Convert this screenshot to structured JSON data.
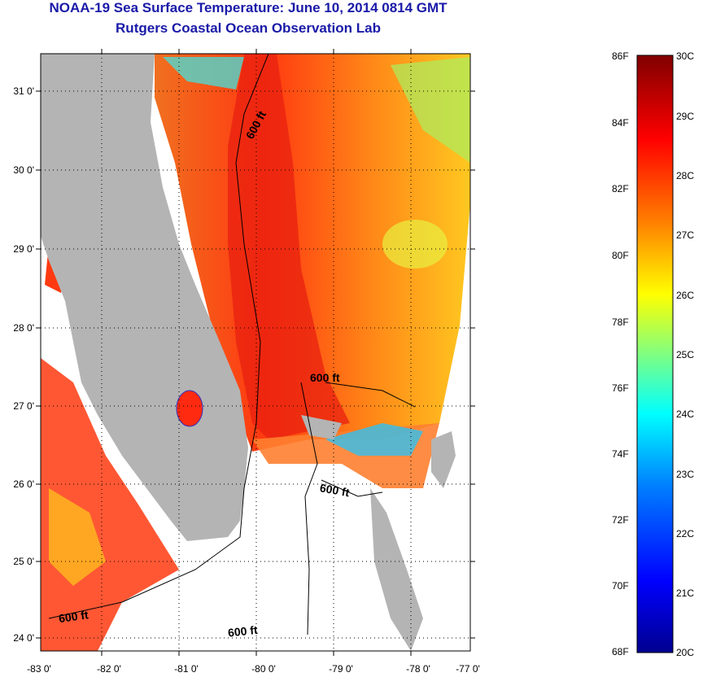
{
  "header": {
    "title": "NOAA-19 Sea Surface Temperature:  June 10, 2014 0814 GMT",
    "subtitle": "Rutgers Coastal Ocean Observation Lab"
  },
  "map": {
    "lon_ticks": [
      "-83 0'",
      "-82 0'",
      "-81 0'",
      "-80 0'",
      "-79 0'",
      "-78 0'",
      "-77 0'"
    ],
    "lat_ticks": [
      "31 0'",
      "30 0'",
      "29 0'",
      "28 0'",
      "27 0'",
      "26 0'",
      "25 0'",
      "24 0'"
    ],
    "isobath_label": "600 ft",
    "land_color": "#b4b4b4",
    "no_data_color": "#ffffff"
  },
  "colorbar": {
    "f_labels": [
      "86F",
      "84F",
      "82F",
      "80F",
      "78F",
      "76F",
      "74F",
      "72F",
      "70F",
      "68F"
    ],
    "c_labels": [
      "30C",
      "29C",
      "28C",
      "27C",
      "26C",
      "25C",
      "24C",
      "23C",
      "22C",
      "21C",
      "20C"
    ],
    "colormap": [
      "#00008f",
      "#0000ff",
      "#0080ff",
      "#00ffff",
      "#80ff80",
      "#ffff00",
      "#ff8000",
      "#ff0000",
      "#800000"
    ]
  }
}
